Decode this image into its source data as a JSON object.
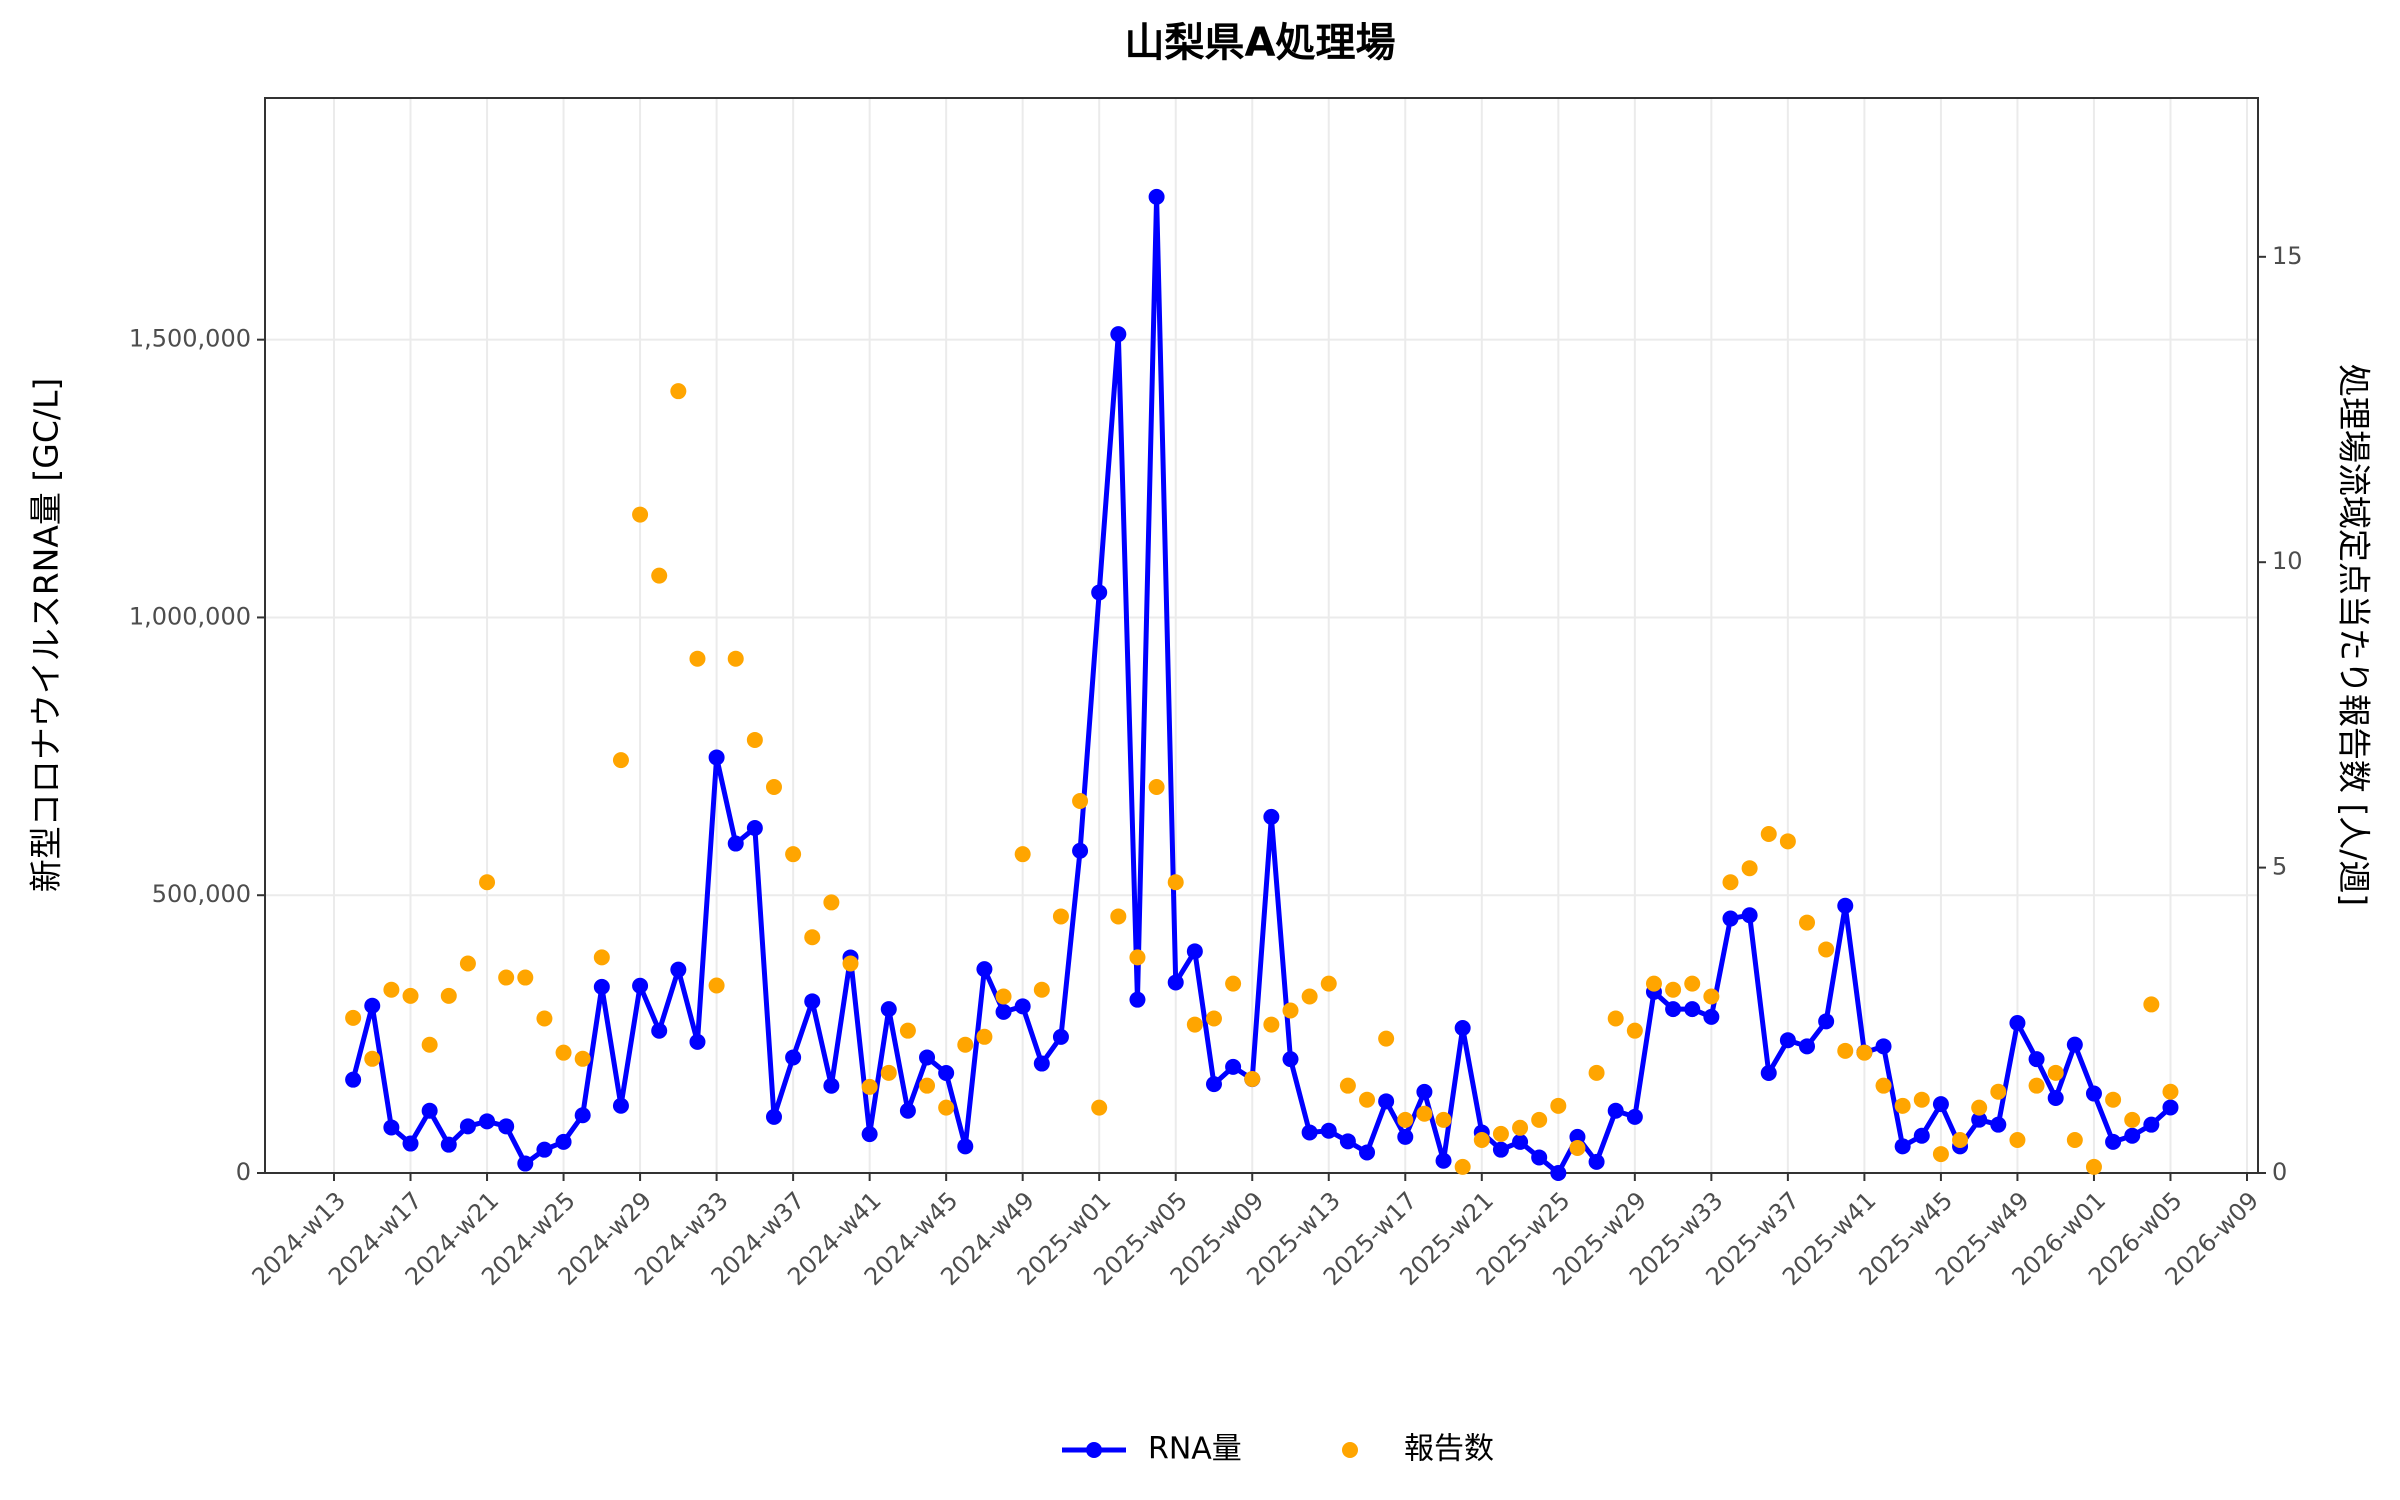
{
  "chart_data": {
    "type": "line",
    "title": "山梨県A処理場",
    "y_label": "新型コロナウイルスRNA量 [GC/L]",
    "y2_label": "処理場流域定点当たり報告数 [人/週]",
    "x": [
      "2024-w14",
      "2024-w15",
      "2024-w16",
      "2024-w17",
      "2024-w18",
      "2024-w19",
      "2024-w20",
      "2024-w21",
      "2024-w22",
      "2024-w23",
      "2024-w24",
      "2024-w25",
      "2024-w26",
      "2024-w27",
      "2024-w28",
      "2024-w29",
      "2024-w30",
      "2024-w31",
      "2024-w32",
      "2024-w33",
      "2024-w34",
      "2024-w35",
      "2024-w36",
      "2024-w37",
      "2024-w38",
      "2024-w39",
      "2024-w40",
      "2024-w41",
      "2024-w42",
      "2024-w43",
      "2024-w44",
      "2024-w45",
      "2024-w46",
      "2024-w47",
      "2024-w48",
      "2024-w49",
      "2024-w50",
      "2024-w51",
      "2024-w52",
      "2025-w01",
      "2025-w02",
      "2025-w03",
      "2025-w04",
      "2025-w05",
      "2025-w06",
      "2025-w07",
      "2025-w08",
      "2025-w09",
      "2025-w10",
      "2025-w11",
      "2025-w12",
      "2025-w13",
      "2025-w14",
      "2025-w15",
      "2025-w16",
      "2025-w17",
      "2025-w18",
      "2025-w19",
      "2025-w20",
      "2025-w21",
      "2025-w22",
      "2025-w23",
      "2025-w24",
      "2025-w25",
      "2025-w26",
      "2025-w27",
      "2025-w28",
      "2025-w29",
      "2025-w30",
      "2025-w31",
      "2025-w32",
      "2025-w33",
      "2025-w34",
      "2025-w35",
      "2025-w36",
      "2025-w37",
      "2025-w38",
      "2025-w39",
      "2025-w40",
      "2025-w41",
      "2025-w42",
      "2025-w43",
      "2025-w44",
      "2025-w45",
      "2025-w46",
      "2025-w47",
      "2025-w48",
      "2025-w49",
      "2025-w50",
      "2025-w51",
      "2025-w52",
      "2026-w01",
      "2026-w02",
      "2026-w03",
      "2026-w04",
      "2026-w05"
    ],
    "xticks": [
      "2024-w13",
      "2024-w17",
      "2024-w21",
      "2024-w25",
      "2024-w29",
      "2024-w33",
      "2024-w37",
      "2024-w41",
      "2024-w45",
      "2024-w49",
      "2025-w01",
      "2025-w05",
      "2025-w09",
      "2025-w13",
      "2025-w17",
      "2025-w21",
      "2025-w25",
      "2025-w29",
      "2025-w33",
      "2025-w37",
      "2025-w41",
      "2025-w45",
      "2025-w49",
      "2026-w01",
      "2026-w05",
      "2026-w09"
    ],
    "ylim": [
      0,
      1935000
    ],
    "yticks": [
      0,
      {
        "value": 500000,
        "label": "500,000"
      },
      {
        "value": 1000000,
        "label": "1,000,000"
      },
      {
        "value": 1500000,
        "label": "1,500,000"
      }
    ],
    "y2lim": [
      0,
      17.6
    ],
    "y2ticks": [
      0,
      5,
      10,
      15
    ],
    "grid": true,
    "legend": "bottom",
    "series": [
      {
        "name": "RNA量",
        "type": "line",
        "color": "#0000ff",
        "values": [
          168000,
          301000,
          82000,
          53000,
          112000,
          51000,
          84000,
          93000,
          84000,
          17000,
          42000,
          56000,
          104000,
          335000,
          121000,
          337000,
          256000,
          366000,
          236000,
          748000,
          593000,
          621000,
          101000,
          208000,
          309000,
          157000,
          388000,
          70000,
          295000,
          112000,
          208000,
          180000,
          48000,
          367000,
          290000,
          300000,
          197000,
          245000,
          580000,
          1045000,
          1510000,
          312000,
          1757000,
          343000,
          399000,
          160000,
          191000,
          169000,
          641000,
          205000,
          73000,
          76000,
          57000,
          37000,
          129000,
          65000,
          146000,
          22000,
          261000,
          73000,
          42000,
          56000,
          28000,
          0,
          65000,
          20000,
          112000,
          101000,
          326000,
          295000,
          295000,
          281000,
          458000,
          464000,
          180000,
          239000,
          228000,
          273000,
          481000,
          217000,
          228000,
          48000,
          67000,
          124000,
          48000,
          96000,
          87000,
          270000,
          205000,
          135000,
          231000,
          143000,
          56000,
          67000,
          87000,
          118000
        ]
      },
      {
        "name": "報告数",
        "type": "scatter",
        "axis": "y2",
        "color": "#ffa500",
        "values": [
          2.54,
          1.87,
          3.0,
          2.9,
          2.1,
          2.9,
          3.43,
          4.76,
          3.2,
          3.2,
          2.53,
          1.97,
          1.87,
          3.53,
          6.76,
          10.78,
          9.78,
          12.8,
          8.42,
          3.07,
          8.42,
          7.09,
          6.32,
          5.22,
          3.86,
          4.43,
          3.43,
          1.41,
          1.64,
          2.33,
          1.43,
          1.07,
          2.1,
          2.23,
          2.89,
          5.22,
          3.0,
          4.2,
          6.09,
          1.07,
          4.2,
          3.53,
          6.32,
          4.76,
          2.43,
          2.53,
          3.1,
          1.54,
          2.43,
          2.66,
          2.89,
          3.1,
          1.43,
          1.2,
          2.2,
          0.87,
          0.97,
          0.87,
          0.1,
          0.54,
          0.64,
          0.74,
          0.87,
          1.1,
          0.41,
          1.64,
          2.53,
          2.33,
          3.1,
          3.0,
          3.1,
          2.89,
          4.76,
          4.99,
          5.55,
          5.43,
          4.1,
          3.66,
          2.0,
          1.97,
          1.43,
          1.1,
          1.2,
          0.31,
          0.54,
          1.07,
          1.33,
          0.54,
          1.43,
          1.64,
          0.54,
          0.1,
          1.2,
          0.87,
          2.76,
          1.33
        ]
      }
    ]
  }
}
